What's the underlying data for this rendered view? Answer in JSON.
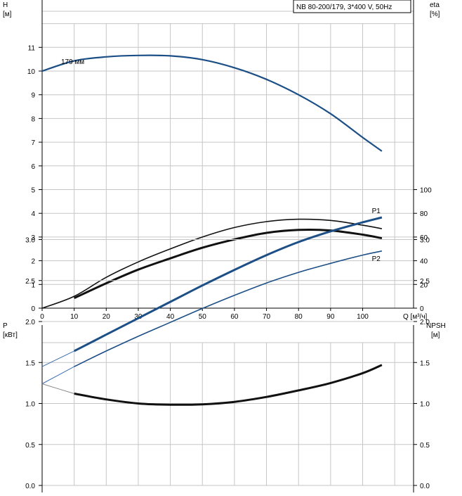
{
  "title": "NB 80-200/179, 3*400 V, 50Hz",
  "chart_data": [
    {
      "id": "top",
      "type": "line",
      "title": "NB 80-200/179, 3*400 V, 50Hz",
      "xlabel": "Q [м³/ч]",
      "xlim": [
        0,
        110
      ],
      "x_ticks": [
        "0",
        "10",
        "20",
        "30",
        "40",
        "50",
        "60",
        "70",
        "80",
        "90",
        "100"
      ],
      "y_left": {
        "label_line1": "H",
        "label_line2": "[м]",
        "ylim": [
          0,
          12
        ],
        "ticks": [
          "0",
          "1",
          "2",
          "3",
          "4",
          "5",
          "6",
          "7",
          "8",
          "9",
          "10",
          "11"
        ]
      },
      "y_right": {
        "label_line1": "eta",
        "label_line2": "[%]",
        "ylim": [
          0,
          120
        ],
        "ticks": [
          "0",
          "20",
          "40",
          "60",
          "80",
          "100"
        ]
      },
      "grid": true,
      "annotations": [
        {
          "text": "179 мм",
          "x": 7,
          "y": 10.4
        }
      ],
      "series": [
        {
          "axis": "left",
          "color": "#1c4f86",
          "points": [
            [
              0,
              10.0
            ],
            [
              10,
              10.43
            ],
            [
              20,
              10.6
            ],
            [
              30,
              10.66
            ],
            [
              40,
              10.64
            ],
            [
              50,
              10.48
            ],
            [
              60,
              10.14
            ],
            [
              70,
              9.65
            ],
            [
              80,
              9.0
            ],
            [
              90,
              8.2
            ],
            [
              100,
              7.2
            ],
            [
              106,
              6.62
            ]
          ]
        },
        {
          "axis": "right",
          "color": "#111111",
          "weight": "thin",
          "points": [
            [
              0,
              0
            ],
            [
              10,
              10
            ],
            [
              20,
              26
            ],
            [
              30,
              39
            ],
            [
              40,
              50
            ],
            [
              50,
              60
            ],
            [
              60,
              68
            ],
            [
              70,
              73
            ],
            [
              80,
              75
            ],
            [
              90,
              74
            ],
            [
              100,
              70
            ],
            [
              106,
              67
            ]
          ]
        },
        {
          "axis": "right",
          "color": "#111111",
          "weight": "thick",
          "points": [
            [
              10,
              8.5
            ],
            [
              20,
              21
            ],
            [
              30,
              32.5
            ],
            [
              40,
              42
            ],
            [
              50,
              51
            ],
            [
              60,
              58
            ],
            [
              70,
              63.5
            ],
            [
              80,
              66
            ],
            [
              90,
              65.5
            ],
            [
              100,
              62
            ],
            [
              106,
              59
            ]
          ]
        }
      ]
    },
    {
      "id": "bottom",
      "type": "line",
      "xlim": [
        0,
        110
      ],
      "y_left": {
        "label_line1": "P",
        "label_line2": "[кВт]",
        "ylim": [
          0,
          3.5
        ],
        "ticks": [
          "0.0",
          "0.5",
          "1.0",
          "1.5",
          "2.0",
          "2.5",
          "3.0"
        ]
      },
      "y_right": {
        "label_line1": "NPSH",
        "label_line2": "[м]",
        "ylim": [
          0,
          3.5
        ],
        "ticks": [
          "0.0",
          "0.5",
          "1.0",
          "1.5",
          "2.0",
          "2.5",
          "3.0"
        ]
      },
      "grid": true,
      "series": [
        {
          "name": "P1",
          "axis": "left",
          "color": "#1c4f86",
          "weight": "thick",
          "points": [
            [
              10,
              1.64
            ],
            [
              20,
              1.84
            ],
            [
              30,
              2.04
            ],
            [
              40,
              2.24
            ],
            [
              50,
              2.44
            ],
            [
              60,
              2.63
            ],
            [
              70,
              2.81
            ],
            [
              80,
              2.97
            ],
            [
              90,
              3.1
            ],
            [
              100,
              3.21
            ],
            [
              106,
              3.27
            ]
          ]
        },
        {
          "name": "",
          "axis": "left",
          "color": "#3a6fb0",
          "weight": "hair",
          "points": [
            [
              0,
              1.45
            ],
            [
              10,
              1.64
            ]
          ]
        },
        {
          "name": "P2",
          "axis": "left",
          "color": "#1c4f86",
          "weight": "thin",
          "points": [
            [
              10,
              1.45
            ],
            [
              20,
              1.64
            ],
            [
              30,
              1.82
            ],
            [
              40,
              1.99
            ],
            [
              50,
              2.16
            ],
            [
              60,
              2.32
            ],
            [
              70,
              2.47
            ],
            [
              80,
              2.6
            ],
            [
              90,
              2.71
            ],
            [
              100,
              2.81
            ],
            [
              106,
              2.86
            ]
          ]
        },
        {
          "name": "",
          "axis": "left",
          "color": "#3a6fb0",
          "weight": "hair",
          "points": [
            [
              0,
              1.24
            ],
            [
              10,
              1.45
            ]
          ]
        },
        {
          "name": "",
          "axis": "right",
          "color": "#111111",
          "weight": "thick",
          "points": [
            [
              10,
              1.12
            ],
            [
              20,
              1.05
            ],
            [
              30,
              1.0
            ],
            [
              40,
              0.985
            ],
            [
              50,
              0.99
            ],
            [
              60,
              1.02
            ],
            [
              70,
              1.08
            ],
            [
              80,
              1.16
            ],
            [
              90,
              1.25
            ],
            [
              100,
              1.37
            ],
            [
              106,
              1.47
            ]
          ]
        },
        {
          "name": "",
          "axis": "right",
          "color": "#888888",
          "weight": "hair",
          "points": [
            [
              0,
              1.24
            ],
            [
              10,
              1.12
            ]
          ]
        }
      ],
      "series_labels": [
        {
          "text": "P1"
        },
        {
          "text": "P2"
        }
      ]
    }
  ]
}
